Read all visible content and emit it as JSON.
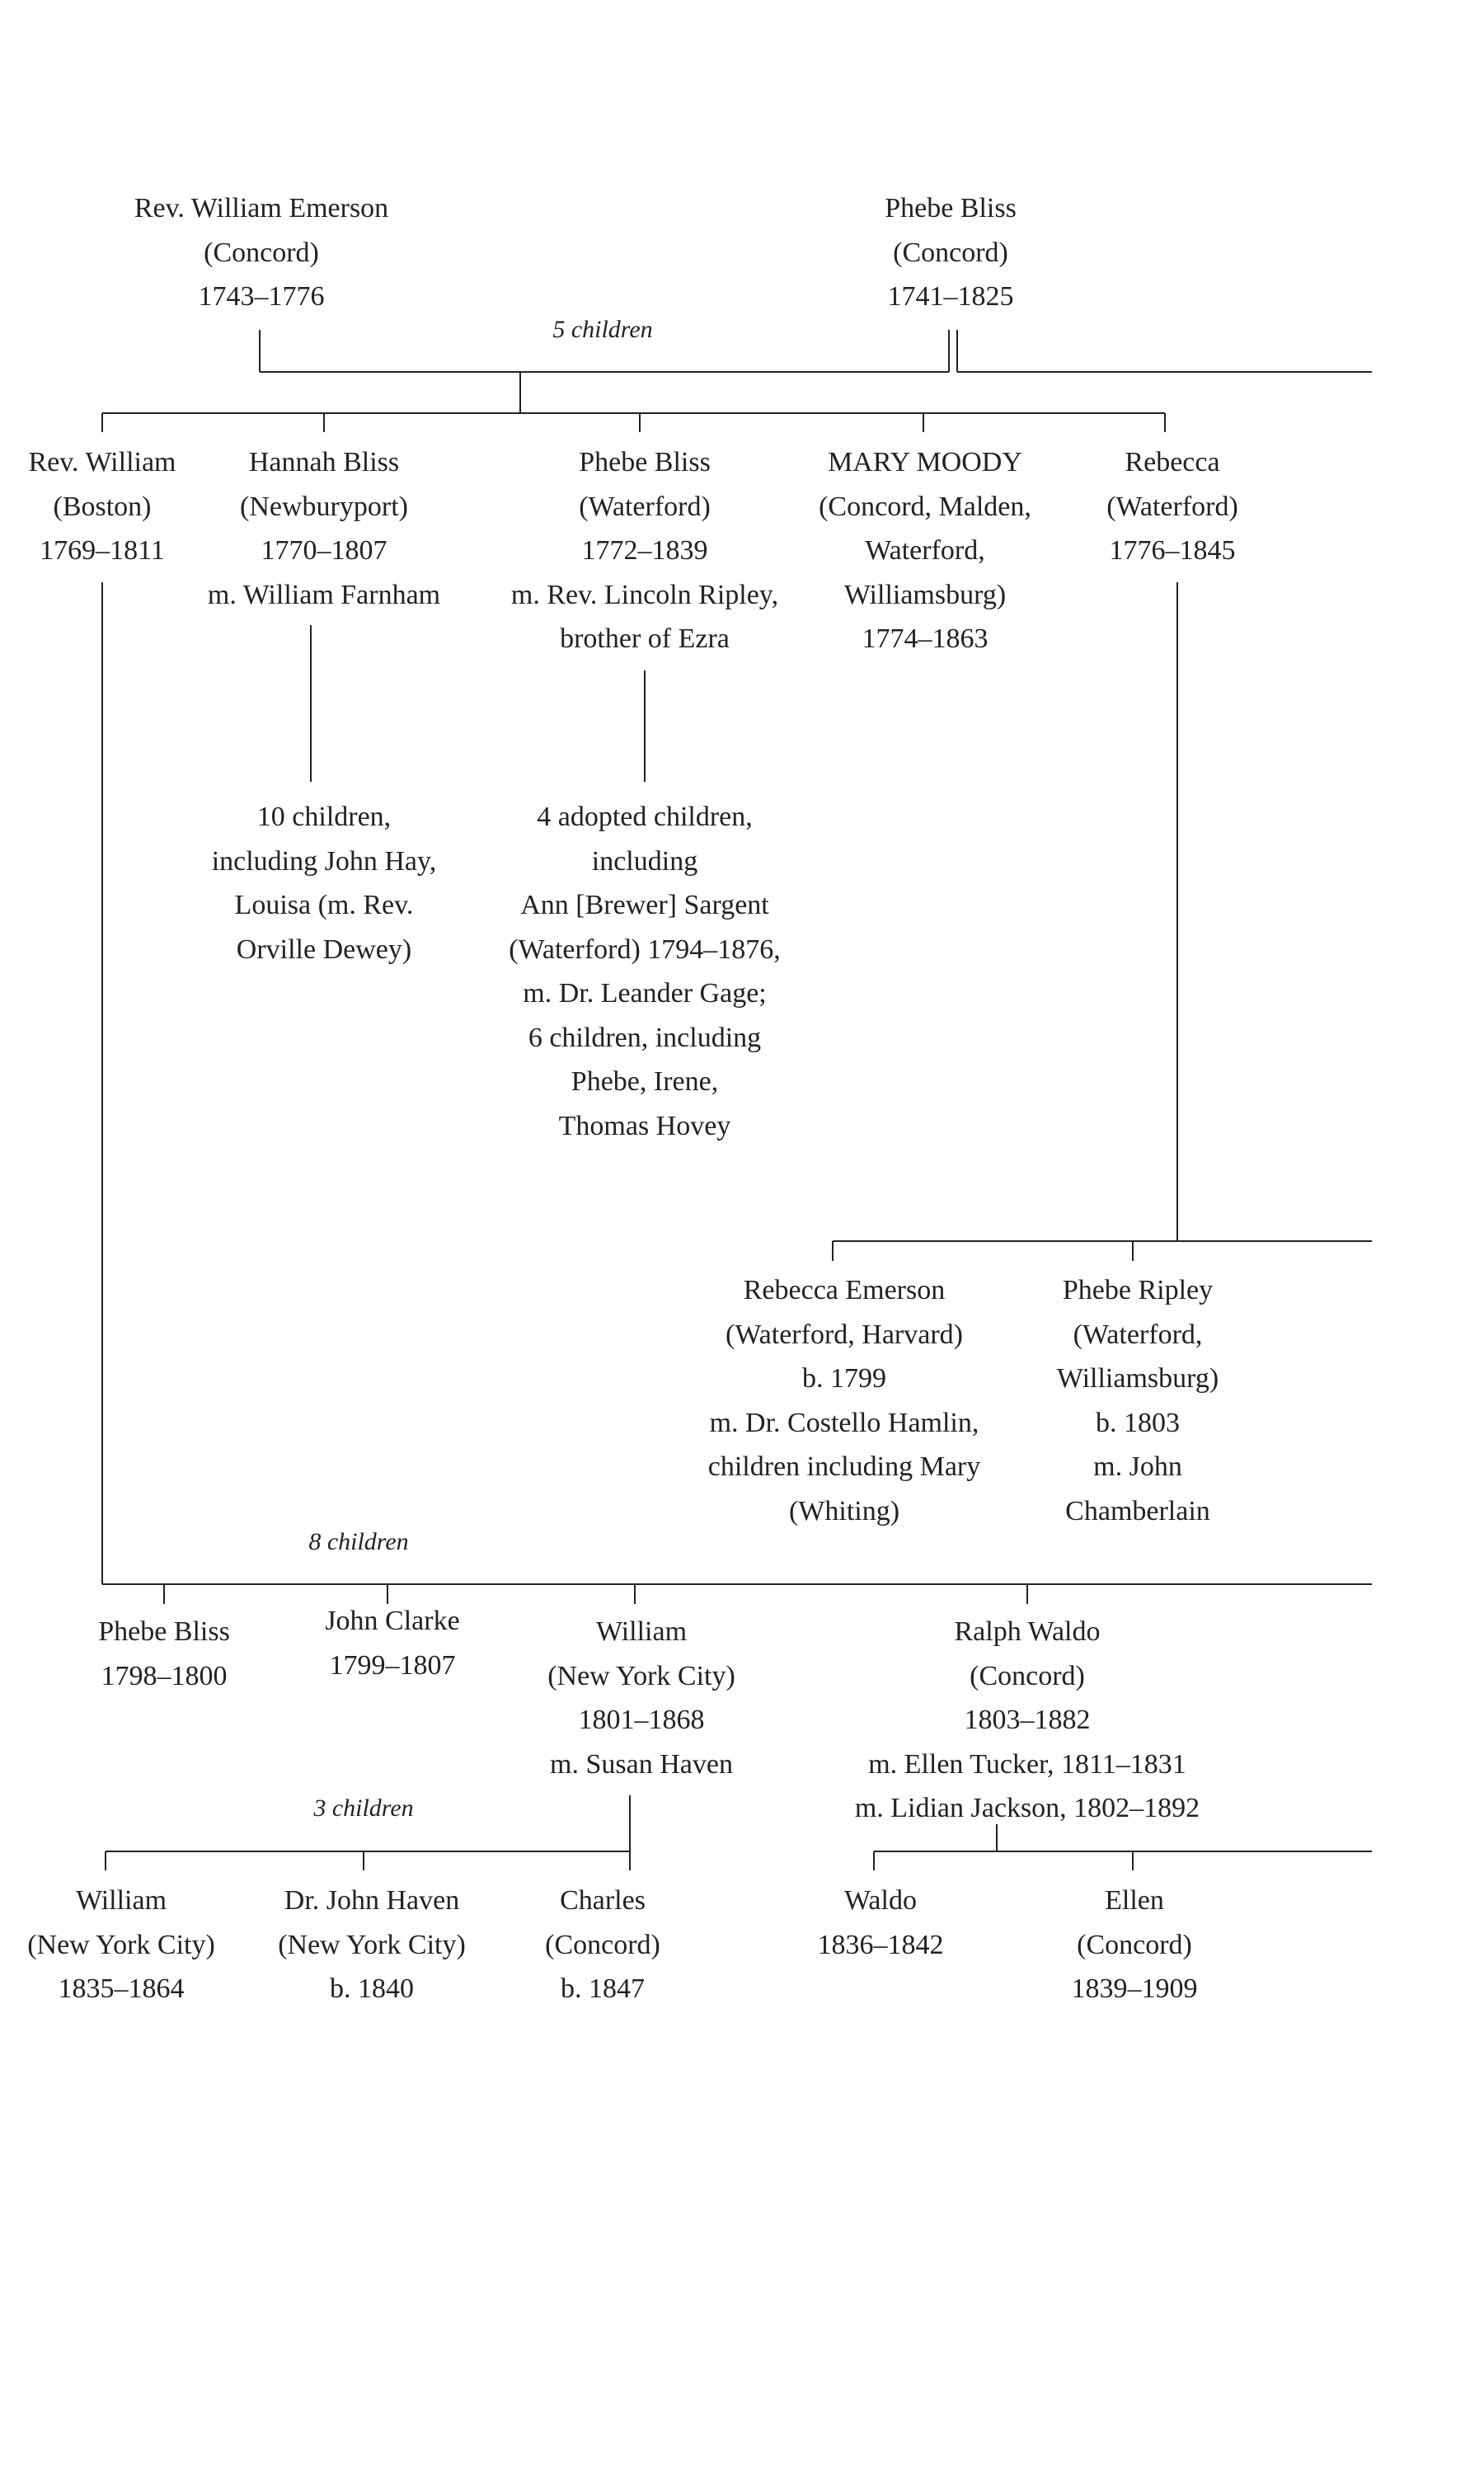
{
  "people": {
    "william_emerson": [
      "Rev. William Emerson",
      "(Concord)",
      "1743–1776"
    ],
    "phebe_bliss_sr": [
      "Phebe Bliss",
      "(Concord)",
      "1741–1825"
    ],
    "rev_william": [
      "Rev. William",
      "(Boston)",
      "1769–1811"
    ],
    "hannah_bliss": [
      "Hannah Bliss",
      "(Newburyport)",
      "1770–1807",
      "m. William Farnham"
    ],
    "phebe_bliss": [
      "Phebe Bliss",
      "(Waterford)",
      "1772–1839",
      "m. Rev. Lincoln Ripley,",
      "brother of Ezra"
    ],
    "mary_moody": [
      "MARY MOODY",
      "(Concord, Malden,",
      "Waterford,",
      "Williamsburg)",
      "1774–1863"
    ],
    "rebecca": [
      "Rebecca",
      "(Waterford)",
      "1776–1845"
    ],
    "hannah_children": [
      "10 children,",
      "including John Hay,",
      "Louisa (m. Rev.",
      "Orville Dewey)"
    ],
    "phebe_children": [
      "4 adopted children,",
      "including",
      "Ann [Brewer] Sargent",
      "(Waterford) 1794–1876,",
      "m. Dr. Leander Gage;",
      "6 children, including",
      "Phebe, Irene,",
      "Thomas Hovey"
    ],
    "rebecca_emerson": [
      "Rebecca Emerson",
      "(Waterford, Harvard)",
      "b. 1799",
      "m. Dr. Costello Hamlin,",
      "children including Mary",
      "(Whiting)"
    ],
    "phebe_ripley": [
      "Phebe Ripley",
      "(Waterford,",
      "Williamsburg)",
      "b. 1803",
      "m. John",
      "Chamberlain"
    ],
    "phebe_bliss_jr": [
      "Phebe Bliss",
      "1798–1800"
    ],
    "john_clarke": [
      "John Clarke",
      "1799–1807"
    ],
    "william_nyc": [
      "William",
      "(New York City)",
      "1801–1868",
      "m. Susan Haven"
    ],
    "ralph_waldo": [
      "Ralph Waldo",
      "(Concord)",
      "1803–1882",
      "m. Ellen Tucker, 1811–1831",
      "m. Lidian Jackson, 1802–1892"
    ],
    "william_jr": [
      "William",
      "(New York City)",
      "1835–1864"
    ],
    "john_haven": [
      "Dr. John Haven",
      "(New York City)",
      "b. 1840"
    ],
    "charles": [
      "Charles",
      "(Concord)",
      "b. 1847"
    ],
    "waldo": [
      "Waldo",
      "1836–1842"
    ],
    "ellen": [
      "Ellen",
      "(Concord)",
      "1839–1909"
    ]
  },
  "labels": {
    "five_children": "5 children",
    "eight_children": "8 children",
    "three_children": "3 children"
  }
}
